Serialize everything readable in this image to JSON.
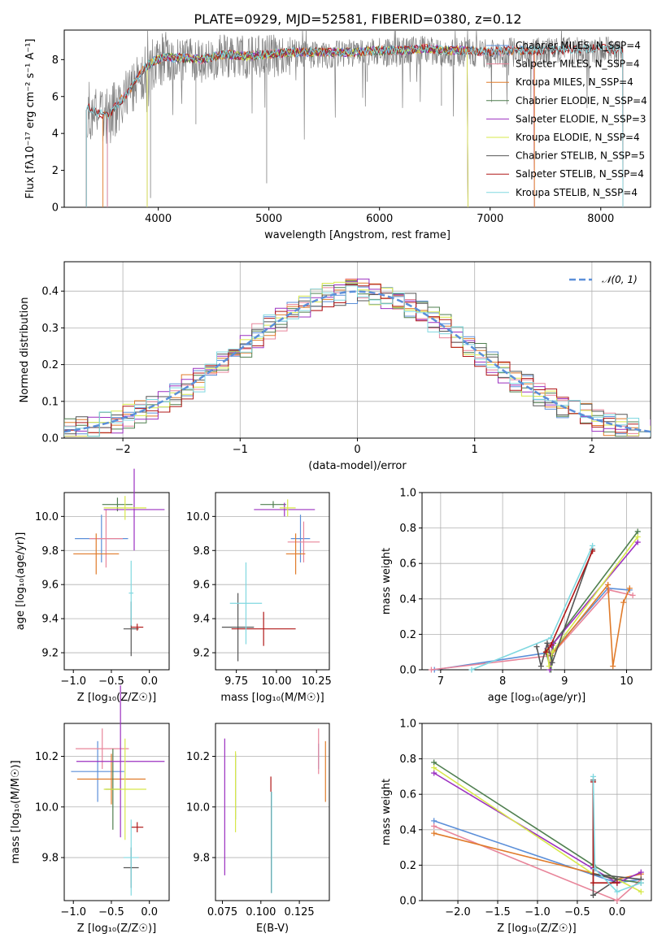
{
  "figure_title": "PLATE=0929, MJD=52581, FIBERID=0380, z=0.12",
  "colors": {
    "Chabrier MILES": "#5b8fd9",
    "Salpeter MILES": "#e8859a",
    "Kroupa MILES": "#e07b2a",
    "Chabrier ELODIE": "#4f7f4f",
    "Salpeter ELODIE": "#9b30c0",
    "Kroupa ELODIE": "#d7e84a",
    "Chabrier STELIB": "#555555",
    "Salpeter STELIB": "#b01818",
    "Kroupa STELIB": "#80d8e0",
    "data": "#808080",
    "normal": "#5b8fd9"
  },
  "chart_data": [
    {
      "id": "spectrum",
      "type": "line",
      "xlabel": "wavelength [Angstrom, rest frame]",
      "ylabel": "Flux [f$_\\lambda$10$^{-17}$ erg cm$^{-2}$ s$^{-1}$ A$^{-1}$]",
      "ylabel_display": "Flux [fλ10⁻¹⁷ erg cm⁻² s⁻¹ A⁻¹]",
      "xlim": [
        3150,
        8450
      ],
      "ylim": [
        0,
        9.6
      ],
      "xticks": [
        4000,
        5000,
        6000,
        7000,
        8000
      ],
      "yticks": [
        0,
        2,
        4,
        6,
        8
      ],
      "legend_position": "top-right",
      "legend": [
        {
          "name": "Chabrier MILES",
          "label": "Chabrier MILES, N$_{SSP}$=4",
          "display": "Chabrier MILES, N_SSP=4"
        },
        {
          "name": "Salpeter MILES",
          "label": "Salpeter MILES, N$_{SSP}$=4",
          "display": "Salpeter MILES, N_SSP=4"
        },
        {
          "name": "Kroupa MILES",
          "label": "Kroupa MILES, N$_{SSP}$=4",
          "display": "Kroupa MILES, N_SSP=4"
        },
        {
          "name": "Chabrier ELODIE",
          "label": "Chabrier ELODIE, N$_{SSP}$=4",
          "display": "Chabrier ELODIE, N_SSP=4"
        },
        {
          "name": "Salpeter ELODIE",
          "label": "Salpeter ELODIE, N$_{SSP}$=3",
          "display": "Salpeter ELODIE, N_SSP=3"
        },
        {
          "name": "Kroupa ELODIE",
          "label": "Kroupa ELODIE, N$_{SSP}$=4",
          "display": "Kroupa ELODIE, N_SSP=4"
        },
        {
          "name": "Chabrier STELIB",
          "label": "Chabrier STELIB, N$_{SSP}$=5",
          "display": "Chabrier STELIB, N_SSP=5"
        },
        {
          "name": "Salpeter STELIB",
          "label": "Salpeter STELIB, N$_{SSP}$=4",
          "display": "Salpeter STELIB, N_SSP=4"
        },
        {
          "name": "Kroupa STELIB",
          "label": "Kroupa STELIB, N$_{SSP}$=4",
          "display": "Kroupa STELIB, N_SSP=4"
        }
      ],
      "continuum_x": [
        3350,
        3450,
        3550,
        3650,
        3750,
        3850,
        3950,
        4050,
        4200,
        4400,
        4600,
        4800,
        5000,
        5200,
        5400,
        5600,
        5800,
        6000,
        6200,
        6400,
        6600,
        6800,
        7000,
        7200,
        7400,
        7600,
        7800,
        8000,
        8200
      ],
      "continuum_y": [
        5.4,
        5.0,
        4.9,
        5.6,
        6.3,
        7.3,
        7.8,
        8.0,
        8.0,
        7.9,
        8.2,
        8.1,
        8.2,
        8.3,
        8.3,
        8.3,
        8.3,
        8.4,
        8.4,
        8.5,
        8.4,
        8.4,
        8.3,
        8.4,
        8.4,
        8.4,
        8.5,
        8.5,
        8.4
      ],
      "model_ranges": {
        "Chabrier MILES": [
          3540,
          7400
        ],
        "Salpeter MILES": [
          3540,
          7400
        ],
        "Kroupa MILES": [
          3500,
          7400
        ],
        "Chabrier ELODIE": [
          3900,
          6800
        ],
        "Salpeter ELODIE": [
          3900,
          6800
        ],
        "Kroupa ELODIE": [
          3900,
          6800
        ],
        "Chabrier STELIB": [
          3350,
          8200
        ],
        "Salpeter STELIB": [
          3350,
          8200
        ],
        "Kroupa STELIB": [
          3350,
          8200
        ]
      }
    },
    {
      "id": "residuals",
      "type": "histogram",
      "xlabel": "(data-model)/error",
      "ylabel": "Normed distribution",
      "xlim": [
        -2.5,
        2.5
      ],
      "ylim": [
        0,
        0.48
      ],
      "xticks": [
        -2,
        -1,
        0,
        1,
        2
      ],
      "yticks": [
        0.0,
        0.1,
        0.2,
        0.3,
        0.4
      ],
      "grid": true,
      "legend_position": "top-right",
      "normal_label": "$\\mathcal{N}(0,1)$",
      "normal_display": "𝒩(0, 1)",
      "bin_width": 0.1,
      "series_names": [
        "Chabrier MILES",
        "Salpeter MILES",
        "Kroupa MILES",
        "Chabrier ELODIE",
        "Salpeter ELODIE",
        "Kroupa ELODIE",
        "Chabrier STELIB",
        "Salpeter STELIB",
        "Kroupa STELIB"
      ]
    },
    {
      "id": "age_vs_Z",
      "type": "errorbar",
      "xlabel": "Z [log$_{10}$($Z/Z_\\odot$)]",
      "xlabel_display": "Z [log₁₀(Z/Z☉)]",
      "ylabel": "age  [log$_{10}$($age/yr$)]",
      "ylabel_display": "age  [log₁₀(age/yr)]",
      "xlim": [
        -1.12,
        0.26
      ],
      "ylim": [
        9.1,
        10.14
      ],
      "xticks": [
        -1.0,
        -0.5,
        0.0
      ],
      "yticks": [
        9.2,
        9.4,
        9.6,
        9.8,
        10.0
      ],
      "points": [
        {
          "model": "Chabrier MILES",
          "x": -0.63,
          "xerr": 0.35,
          "y": 9.87,
          "yerr": 0.14
        },
        {
          "model": "Salpeter MILES",
          "x": -0.57,
          "xerr": 0.22,
          "y": 9.87,
          "yerr": 0.17
        },
        {
          "model": "Kroupa MILES",
          "x": -0.7,
          "xerr": 0.3,
          "y": 9.78,
          "yerr": 0.12
        },
        {
          "model": "Chabrier ELODIE",
          "x": -0.42,
          "xerr": 0.2,
          "y": 10.07,
          "yerr": 0.04
        },
        {
          "model": "Salpeter ELODIE",
          "x": -0.2,
          "xerr": 0.4,
          "y": 10.04,
          "yerr": 0.24
        },
        {
          "model": "Kroupa ELODIE",
          "x": -0.32,
          "xerr": 0.28,
          "y": 10.05,
          "yerr": 0.07
        },
        {
          "model": "Chabrier STELIB",
          "x": -0.24,
          "xerr": 0.1,
          "y": 9.34,
          "yerr": 0.16
        },
        {
          "model": "Salpeter STELIB",
          "x": -0.16,
          "xerr": 0.08,
          "y": 9.35,
          "yerr": 0.02
        },
        {
          "model": "Kroupa STELIB",
          "x": -0.24,
          "xerr": 0.03,
          "y": 9.55,
          "yerr": 0.19
        }
      ]
    },
    {
      "id": "age_vs_mass",
      "type": "errorbar",
      "xlabel": "mass [log$_{10}$($M/M_\\odot$)]",
      "xlabel_display": "mass [log₁₀(M/M☉)]",
      "ylabel": "",
      "xlim": [
        9.62,
        10.33
      ],
      "ylim": [
        9.1,
        10.14
      ],
      "xticks": [
        9.75,
        10.0,
        10.25
      ],
      "yticks": [
        9.2,
        9.4,
        9.6,
        9.8,
        10.0
      ],
      "points": [
        {
          "model": "Chabrier MILES",
          "x": 10.15,
          "xerr": 0.06,
          "y": 9.87,
          "yerr": 0.14
        },
        {
          "model": "Salpeter MILES",
          "x": 10.17,
          "xerr": 0.1,
          "y": 9.85,
          "yerr": 0.12
        },
        {
          "model": "Kroupa MILES",
          "x": 10.12,
          "xerr": 0.06,
          "y": 9.78,
          "yerr": 0.12
        },
        {
          "model": "Chabrier ELODIE",
          "x": 9.98,
          "xerr": 0.08,
          "y": 10.07,
          "yerr": 0.02
        },
        {
          "model": "Salpeter ELODIE",
          "x": 10.05,
          "xerr": 0.19,
          "y": 10.04,
          "yerr": 0.04
        },
        {
          "model": "Kroupa ELODIE",
          "x": 10.07,
          "xerr": 0.05,
          "y": 10.05,
          "yerr": 0.05
        },
        {
          "model": "Chabrier STELIB",
          "x": 9.76,
          "xerr": 0.1,
          "y": 9.35,
          "yerr": 0.2
        },
        {
          "model": "Salpeter STELIB",
          "x": 9.92,
          "xerr": 0.2,
          "y": 9.34,
          "yerr": 0.1
        },
        {
          "model": "Kroupa STELIB",
          "x": 9.81,
          "xerr": 0.1,
          "y": 9.49,
          "yerr": 0.24
        }
      ]
    },
    {
      "id": "weight_vs_age",
      "type": "line",
      "xlabel": "age  [log$_{10}$($age/yr$)]",
      "xlabel_display": "age  [log₁₀(age/yr)]",
      "ylabel": "mass weight",
      "xlim": [
        6.7,
        10.4
      ],
      "ylim": [
        0,
        1.0
      ],
      "xticks": [
        7,
        8,
        9,
        10
      ],
      "yticks": [
        0.0,
        0.2,
        0.4,
        0.6,
        0.8,
        1.0
      ],
      "grid": true,
      "series": [
        {
          "name": "Chabrier MILES",
          "x": [
            6.9,
            8.8,
            9.7,
            10.05
          ],
          "y": [
            0.0,
            0.1,
            0.46,
            0.45
          ]
        },
        {
          "name": "Salpeter MILES",
          "x": [
            6.85,
            8.78,
            9.72,
            10.1
          ],
          "y": [
            0.0,
            0.08,
            0.45,
            0.42
          ]
        },
        {
          "name": "Kroupa MILES",
          "x": [
            8.78,
            9.7,
            9.78,
            9.95,
            10.05
          ],
          "y": [
            0.08,
            0.48,
            0.02,
            0.38,
            0.46
          ]
        },
        {
          "name": "Chabrier ELODIE",
          "x": [
            8.7,
            8.78,
            8.82,
            10.18
          ],
          "y": [
            0.1,
            0.0,
            0.15,
            0.78
          ]
        },
        {
          "name": "Salpeter ELODIE",
          "x": [
            8.72,
            8.76,
            8.8,
            10.18
          ],
          "y": [
            0.12,
            0.0,
            0.14,
            0.72
          ]
        },
        {
          "name": "Kroupa ELODIE",
          "x": [
            8.72,
            8.75,
            8.8,
            10.18
          ],
          "y": [
            0.11,
            0.02,
            0.1,
            0.75
          ]
        },
        {
          "name": "Chabrier STELIB",
          "x": [
            8.55,
            8.62,
            8.72,
            8.8,
            9.45
          ],
          "y": [
            0.13,
            0.02,
            0.15,
            0.04,
            0.68
          ]
        },
        {
          "name": "Salpeter STELIB",
          "x": [
            8.7,
            8.78,
            9.45
          ],
          "y": [
            0.1,
            0.14,
            0.67
          ]
        },
        {
          "name": "Kroupa STELIB",
          "x": [
            7.5,
            8.78,
            9.45
          ],
          "y": [
            0.0,
            0.18,
            0.7
          ]
        }
      ]
    },
    {
      "id": "mass_vs_Z",
      "type": "errorbar",
      "xlabel": "Z [log$_{10}$($Z/Z_\\odot$)]",
      "xlabel_display": "Z [log₁₀(Z/Z☉)]",
      "ylabel": "mass [log$_{10}$($M/M_\\odot$)]",
      "ylabel_display": "mass [log₁₀(M/M☉)]",
      "xlim": [
        -1.12,
        0.26
      ],
      "ylim": [
        9.63,
        10.33
      ],
      "xticks": [
        -1.0,
        -0.5,
        0.0
      ],
      "yticks": [
        9.8,
        10.0,
        10.2
      ],
      "points": [
        {
          "model": "Chabrier MILES",
          "x": -0.68,
          "xerr": 0.35,
          "y": 10.14,
          "yerr": 0.12
        },
        {
          "model": "Salpeter MILES",
          "x": -0.62,
          "xerr": 0.35,
          "y": 10.23,
          "yerr": 0.08
        },
        {
          "model": "Kroupa MILES",
          "x": -0.5,
          "xerr": 0.45,
          "y": 10.11,
          "yerr": 0.1
        },
        {
          "model": "Chabrier ELODIE",
          "x": -0.48,
          "xerr": 0.1,
          "y": 10.07,
          "yerr": 0.16
        },
        {
          "model": "Salpeter ELODIE",
          "x": -0.38,
          "xerr": 0.58,
          "y": 10.18,
          "yerr": 0.3
        },
        {
          "model": "Kroupa ELODIE",
          "x": -0.32,
          "xerr": 0.28,
          "y": 10.07,
          "yerr": 0.2
        },
        {
          "model": "Chabrier STELIB",
          "x": -0.24,
          "xerr": 0.1,
          "y": 9.76,
          "yerr": 0.08
        },
        {
          "model": "Salpeter STELIB",
          "x": -0.16,
          "xerr": 0.08,
          "y": 9.92,
          "yerr": 0.02
        },
        {
          "model": "Kroupa STELIB",
          "x": -0.24,
          "xerr": 0.1,
          "y": 9.8,
          "yerr": 0.15
        }
      ]
    },
    {
      "id": "mass_vs_EBV",
      "type": "errorbar",
      "xlabel": "E(B-V)",
      "ylabel": "",
      "xlim": [
        0.0705,
        0.1445
      ],
      "ylim": [
        9.63,
        10.33
      ],
      "xticks": [
        0.075,
        0.1,
        0.125
      ],
      "yticks": [
        9.8,
        10.0,
        10.2
      ],
      "points": [
        {
          "model": "Chabrier MILES",
          "x": 0.1375,
          "xerr": 0,
          "y": 10.2,
          "yerr": 0.05
        },
        {
          "model": "Salpeter MILES",
          "x": 0.1375,
          "xerr": 0,
          "y": 10.22,
          "yerr": 0.09
        },
        {
          "model": "Kroupa MILES",
          "x": 0.142,
          "xerr": 0,
          "y": 10.14,
          "yerr": 0.12
        },
        {
          "model": "Chabrier ELODIE",
          "x": 0.0835,
          "xerr": 0,
          "y": 10.08,
          "yerr": 0.13
        },
        {
          "model": "Salpeter ELODIE",
          "x": 0.0765,
          "xerr": 0,
          "y": 10.0,
          "yerr": 0.27
        },
        {
          "model": "Kroupa ELODIE",
          "x": 0.0835,
          "xerr": 0,
          "y": 10.06,
          "yerr": 0.16
        },
        {
          "model": "Chabrier STELIB",
          "x": 0.1068,
          "xerr": 0,
          "y": 9.86,
          "yerr": 0.2
        },
        {
          "model": "Salpeter STELIB",
          "x": 0.1065,
          "xerr": 0,
          "y": 10.09,
          "yerr": 0.03
        },
        {
          "model": "Kroupa STELIB",
          "x": 0.107,
          "xerr": 0,
          "y": 9.86,
          "yerr": 0.2
        }
      ]
    },
    {
      "id": "weight_vs_Z",
      "type": "line",
      "xlabel": "Z [log$_{10}$($Z/Z_\\odot$)]",
      "xlabel_display": "Z [log₁₀(Z/Z☉)]",
      "ylabel": "mass weight",
      "xlim": [
        -2.45,
        0.43
      ],
      "ylim": [
        0,
        1.0
      ],
      "xticks": [
        -2.0,
        -1.5,
        -1.0,
        -0.5,
        0.0
      ],
      "yticks": [
        0.0,
        0.2,
        0.4,
        0.6,
        0.8,
        1.0
      ],
      "grid": true,
      "series": [
        {
          "name": "Chabrier MILES",
          "x": [
            -2.3,
            0.0,
            0.3
          ],
          "y": [
            0.45,
            0.1,
            0.12
          ]
        },
        {
          "name": "Salpeter MILES",
          "x": [
            -2.3,
            0.0,
            0.3
          ],
          "y": [
            0.42,
            0.0,
            0.12
          ]
        },
        {
          "name": "Kroupa MILES",
          "x": [
            -2.3,
            0.0,
            0.3
          ],
          "y": [
            0.38,
            0.12,
            0.15
          ]
        },
        {
          "name": "Chabrier ELODIE",
          "x": [
            -2.3,
            -0.3,
            0.0,
            0.3
          ],
          "y": [
            0.78,
            0.2,
            0.12,
            0.1
          ]
        },
        {
          "name": "Salpeter ELODIE",
          "x": [
            -2.3,
            -0.3,
            0.0,
            0.3
          ],
          "y": [
            0.72,
            0.18,
            0.1,
            0.16
          ]
        },
        {
          "name": "Kroupa ELODIE",
          "x": [
            -2.3,
            -0.3,
            0.0,
            0.3
          ],
          "y": [
            0.75,
            0.15,
            0.12,
            0.05
          ]
        },
        {
          "name": "Chabrier STELIB",
          "x": [
            -0.3,
            -0.3,
            0.0,
            -0.3,
            0.3
          ],
          "y": [
            0.68,
            0.03,
            0.12,
            0.15,
            0.12
          ]
        },
        {
          "name": "Salpeter STELIB",
          "x": [
            -0.3,
            -0.3,
            0.0
          ],
          "y": [
            0.67,
            0.1,
            0.1
          ]
        },
        {
          "name": "Kroupa STELIB",
          "x": [
            -0.3,
            -0.28,
            0.0,
            0.3
          ],
          "y": [
            0.7,
            0.18,
            0.05,
            0.1
          ]
        }
      ]
    }
  ]
}
